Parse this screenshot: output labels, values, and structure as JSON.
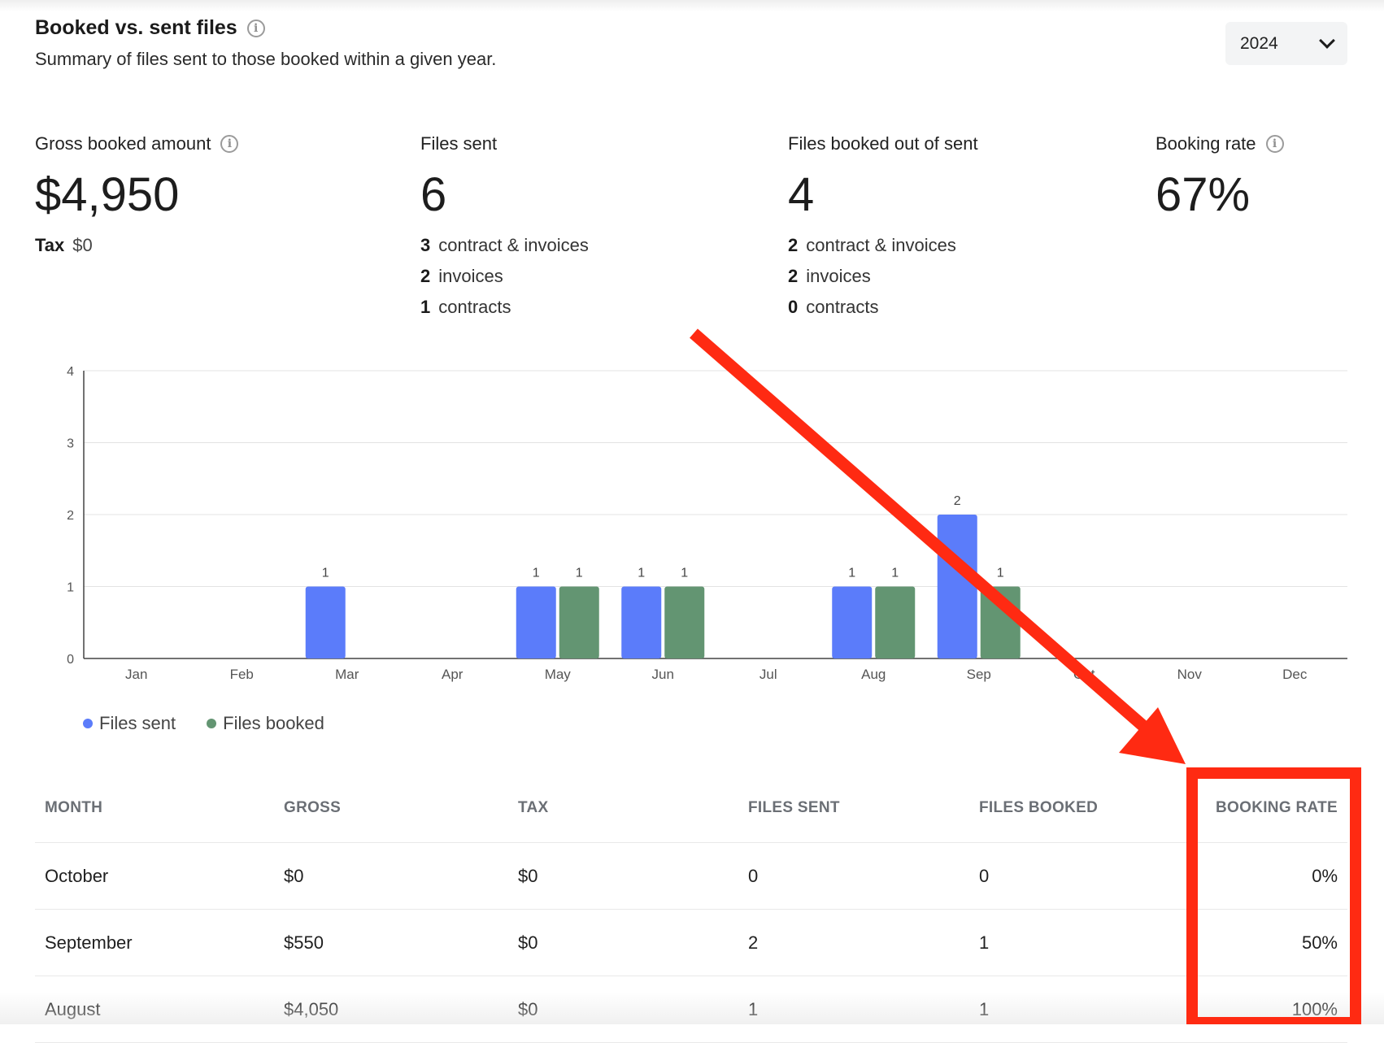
{
  "header": {
    "title": "Booked vs. sent files",
    "subtitle": "Summary of files sent to those booked within a given year.",
    "year": "2024"
  },
  "stats": {
    "gross": {
      "label": "Gross booked amount",
      "value": "$4,950",
      "tax_label": "Tax",
      "tax_value": "$0"
    },
    "sent": {
      "label": "Files sent",
      "value": "6",
      "items": [
        {
          "count": "3",
          "label": "contract & invoices"
        },
        {
          "count": "2",
          "label": "invoices"
        },
        {
          "count": "1",
          "label": "contracts"
        }
      ]
    },
    "booked": {
      "label": "Files booked out of sent",
      "value": "4",
      "items": [
        {
          "count": "2",
          "label": "contract & invoices"
        },
        {
          "count": "2",
          "label": "invoices"
        },
        {
          "count": "0",
          "label": "contracts"
        }
      ]
    },
    "rate": {
      "label": "Booking rate",
      "value": "67%"
    }
  },
  "chart_data": {
    "type": "bar",
    "categories": [
      "Jan",
      "Feb",
      "Mar",
      "Apr",
      "May",
      "Jun",
      "Jul",
      "Aug",
      "Sep",
      "Oct",
      "Nov",
      "Dec"
    ],
    "series": [
      {
        "name": "Files sent",
        "color": "#5b7cfa",
        "values": [
          0,
          0,
          1,
          0,
          1,
          1,
          0,
          1,
          2,
          0,
          0,
          0
        ]
      },
      {
        "name": "Files booked",
        "color": "#639572",
        "values": [
          0,
          0,
          0,
          0,
          1,
          1,
          0,
          1,
          1,
          0,
          0,
          0
        ]
      }
    ],
    "ylim": [
      0,
      4
    ],
    "yticks": [
      0,
      1,
      2,
      3,
      4
    ],
    "grid": true,
    "legend": "bottom-left"
  },
  "table": {
    "headers": [
      "MONTH",
      "GROSS",
      "TAX",
      "FILES SENT",
      "FILES BOOKED",
      "BOOKING RATE"
    ],
    "rows": [
      [
        "October",
        "$0",
        "$0",
        "0",
        "0",
        "0%"
      ],
      [
        "September",
        "$550",
        "$0",
        "2",
        "1",
        "50%"
      ],
      [
        "August",
        "$4,050",
        "$0",
        "1",
        "1",
        "100%"
      ]
    ]
  },
  "annotation": {
    "color": "#ff2a12"
  }
}
